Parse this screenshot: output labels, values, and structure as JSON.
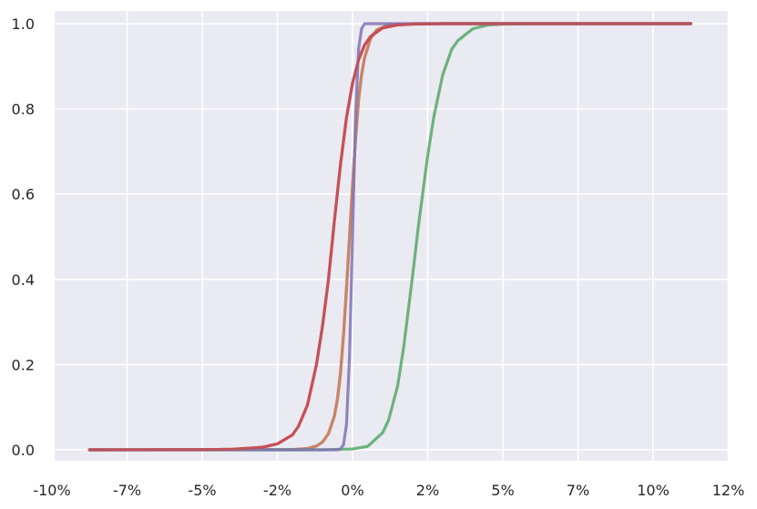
{
  "chart_data": {
    "type": "line",
    "title": "",
    "xlabel": "",
    "ylabel": "",
    "xlim": [
      -0.09,
      0.115
    ],
    "ylim": [
      -0.025,
      1.025
    ],
    "grid": true,
    "legend": "none",
    "background": "#eaeaf2",
    "x_ticks": [
      {
        "value": -0.1,
        "label": "-10%"
      },
      {
        "value": -0.075,
        "label": "-7%"
      },
      {
        "value": -0.05,
        "label": "-5%"
      },
      {
        "value": -0.025,
        "label": "-2%"
      },
      {
        "value": 0.0,
        "label": "0%"
      },
      {
        "value": 0.025,
        "label": "2%"
      },
      {
        "value": 0.05,
        "label": "5%"
      },
      {
        "value": 0.075,
        "label": "7%"
      },
      {
        "value": 0.1,
        "label": "10%"
      },
      {
        "value": 0.125,
        "label": "12%"
      }
    ],
    "y_ticks": [
      {
        "value": 0.0,
        "label": "0.0"
      },
      {
        "value": 0.2,
        "label": "0.2"
      },
      {
        "value": 0.4,
        "label": "0.4"
      },
      {
        "value": 0.6,
        "label": "0.6"
      },
      {
        "value": 0.8,
        "label": "0.8"
      },
      {
        "value": 1.0,
        "label": "1.0"
      }
    ],
    "series": [
      {
        "color": "#4c72b0",
        "x": [
          -0.0875,
          -0.02,
          -0.015,
          -0.012,
          -0.01,
          -0.008,
          -0.006,
          -0.005,
          -0.004,
          -0.003,
          -0.002,
          -0.001,
          0.0,
          0.001,
          0.002,
          0.003,
          0.004,
          0.006,
          0.008,
          0.012,
          0.02,
          0.1125
        ],
        "y": [
          0.0,
          0.0005,
          0.003,
          0.009,
          0.018,
          0.038,
          0.08,
          0.12,
          0.18,
          0.27,
          0.38,
          0.5,
          0.62,
          0.73,
          0.82,
          0.88,
          0.92,
          0.965,
          0.985,
          0.997,
          1.0,
          1.0
        ]
      },
      {
        "color": "#dd8452",
        "x": [
          -0.0875,
          -0.02,
          -0.015,
          -0.012,
          -0.01,
          -0.008,
          -0.006,
          -0.005,
          -0.004,
          -0.003,
          -0.002,
          -0.001,
          0.0,
          0.001,
          0.002,
          0.003,
          0.004,
          0.006,
          0.008,
          0.012,
          0.02,
          0.1125
        ],
        "y": [
          0.0,
          0.0005,
          0.003,
          0.009,
          0.018,
          0.038,
          0.08,
          0.12,
          0.18,
          0.27,
          0.38,
          0.5,
          0.62,
          0.73,
          0.82,
          0.88,
          0.92,
          0.965,
          0.985,
          0.997,
          1.0,
          1.0
        ]
      },
      {
        "color": "#55a868",
        "x": [
          -0.0875,
          -0.01,
          0.0,
          0.005,
          0.01,
          0.012,
          0.015,
          0.017,
          0.02,
          0.022,
          0.025,
          0.027,
          0.03,
          0.033,
          0.035,
          0.04,
          0.045,
          0.05,
          0.06,
          0.1125
        ],
        "y": [
          0.0,
          0.0,
          0.002,
          0.008,
          0.04,
          0.07,
          0.15,
          0.24,
          0.41,
          0.53,
          0.69,
          0.78,
          0.88,
          0.94,
          0.96,
          0.988,
          0.997,
          0.999,
          1.0,
          1.0
        ]
      },
      {
        "color": "#c44e52",
        "x": [
          -0.0875,
          -0.05,
          -0.04,
          -0.03,
          -0.025,
          -0.02,
          -0.018,
          -0.015,
          -0.012,
          -0.01,
          -0.008,
          -0.006,
          -0.004,
          -0.002,
          0.0,
          0.002,
          0.004,
          0.006,
          0.01,
          0.015,
          0.02,
          0.03,
          0.1125
        ],
        "y": [
          0.0,
          0.0004,
          0.0015,
          0.006,
          0.014,
          0.035,
          0.055,
          0.105,
          0.2,
          0.29,
          0.4,
          0.54,
          0.67,
          0.78,
          0.86,
          0.915,
          0.95,
          0.97,
          0.99,
          0.997,
          0.999,
          1.0,
          1.0
        ]
      },
      {
        "color": "#8172b3",
        "x": [
          -0.0875,
          -0.005,
          -0.004,
          -0.003,
          -0.002,
          -0.001,
          0.0,
          0.001,
          0.002,
          0.003,
          0.004,
          0.1125
        ],
        "y": [
          0.0,
          0.0,
          0.002,
          0.012,
          0.06,
          0.22,
          0.5,
          0.78,
          0.94,
          0.988,
          1.0,
          1.0
        ]
      },
      {
        "color": "#c44e52",
        "x": [
          -0.0875,
          -0.05,
          -0.04,
          -0.03,
          -0.025,
          -0.02,
          -0.018,
          -0.015,
          -0.012,
          -0.01,
          -0.008,
          -0.006,
          -0.004,
          -0.002,
          0.0,
          0.002,
          0.004,
          0.006,
          0.01,
          0.015,
          0.02,
          0.03,
          0.1125
        ],
        "y": [
          0.0,
          0.0004,
          0.0015,
          0.006,
          0.014,
          0.035,
          0.055,
          0.105,
          0.2,
          0.29,
          0.4,
          0.54,
          0.67,
          0.78,
          0.86,
          0.915,
          0.95,
          0.97,
          0.99,
          0.997,
          0.999,
          1.0,
          1.0
        ]
      }
    ]
  }
}
